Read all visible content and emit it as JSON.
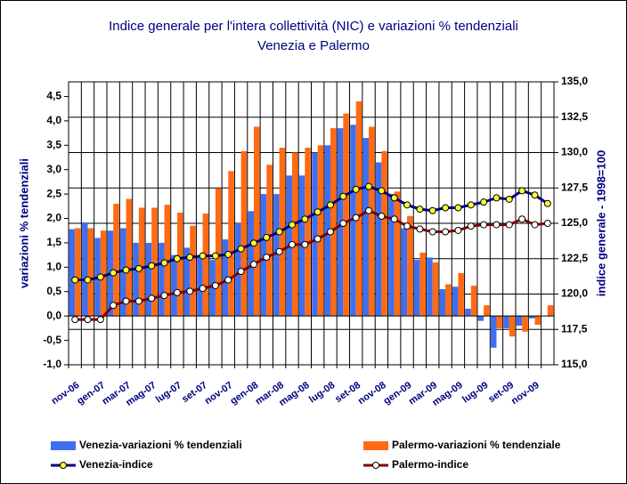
{
  "chart_data": {
    "type": "bar",
    "title": "Indice generale per l'intera collettività (NIC) e variazioni % tendenziali",
    "subtitle": "Venezia e Palermo",
    "y_label": "variazioni % tendenziali",
    "y2_label": "indice generale - 1998=100",
    "categories": [
      "nov-06",
      null,
      "gen-07",
      null,
      "mar-07",
      null,
      "mag-07",
      null,
      "lug-07",
      null,
      "set-07",
      null,
      "nov-07",
      null,
      "gen-08",
      null,
      "mar-08",
      null,
      "mag-08",
      null,
      "lug-08",
      null,
      "set-08",
      null,
      "nov-08",
      null,
      "gen-09",
      null,
      "mar-09",
      null,
      "mag-09",
      null,
      "lug-09",
      null,
      "set-09",
      null,
      "nov-09",
      null
    ],
    "ylim": [
      -1,
      4.8
    ],
    "yticks": [
      {
        "value": 4.5,
        "label": "4,5"
      },
      {
        "value": 4.0,
        "label": "4,0"
      },
      {
        "value": 3.5,
        "label": "3,5"
      },
      {
        "value": 3.0,
        "label": "3,0"
      },
      {
        "value": 2.5,
        "label": "2,5"
      },
      {
        "value": 2.0,
        "label": "2,0"
      },
      {
        "value": 1.5,
        "label": "1,5"
      },
      {
        "value": 1.0,
        "label": "1,0"
      },
      {
        "value": 0.5,
        "label": "0,5"
      },
      {
        "value": 0,
        "label": "0,0"
      },
      {
        "value": -0.5,
        "label": "-0,5"
      },
      {
        "value": -1.0,
        "label": "-1,0"
      }
    ],
    "y2lim": [
      115,
      135
    ],
    "y2ticks": [
      {
        "value": 135,
        "label": "135,0"
      },
      {
        "value": 132.5,
        "label": "132,5"
      },
      {
        "value": 130,
        "label": "130,0"
      },
      {
        "value": 127.5,
        "label": "127,5"
      },
      {
        "value": 125,
        "label": "125,0"
      },
      {
        "value": 122.5,
        "label": "122,5"
      },
      {
        "value": 120,
        "label": "120,0"
      },
      {
        "value": 117.5,
        "label": "117,5"
      },
      {
        "value": 115,
        "label": "115,0"
      }
    ],
    "grid": true,
    "series": [
      {
        "name": "Venezia-variazioni % tendenziali",
        "type": "bar",
        "color": "#3f6fef",
        "values": [
          1.78,
          1.92,
          1.6,
          1.75,
          1.8,
          1.5,
          1.5,
          1.5,
          1.25,
          1.4,
          1.2,
          1.15,
          1.57,
          1.9,
          2.15,
          2.5,
          2.5,
          2.88,
          2.88,
          3.35,
          3.5,
          3.85,
          3.92,
          3.65,
          3.15,
          2.5,
          1.8,
          1.15,
          1.2,
          0.55,
          0.6,
          0.15,
          -0.1,
          -0.65,
          -0.25,
          -0.2,
          -0.05,
          0
        ]
      },
      {
        "name": "Palermo-variazioni % tendenziale",
        "type": "bar",
        "color": "#ff6a13",
        "values": [
          1.8,
          1.8,
          1.75,
          2.3,
          2.4,
          2.22,
          2.22,
          2.28,
          2.12,
          1.85,
          2.1,
          2.62,
          2.97,
          3.38,
          3.88,
          3.1,
          3.45,
          3.35,
          3.45,
          3.5,
          3.85,
          4.15,
          4.4,
          3.88,
          3.38,
          2.55,
          2.05,
          1.3,
          1.1,
          0.65,
          0.88,
          0.62,
          0.22,
          -0.25,
          -0.42,
          -0.32,
          -0.18,
          0.22
        ]
      },
      {
        "name": "Venezia-indice",
        "type": "line",
        "axis": "y2",
        "color": "#000080",
        "marker_color": "#ffff33",
        "values": [
          121.0,
          121.0,
          121.2,
          121.5,
          121.7,
          121.8,
          122.0,
          122.2,
          122.5,
          122.6,
          122.7,
          122.7,
          122.8,
          123.2,
          123.6,
          124.0,
          124.4,
          124.9,
          125.3,
          125.8,
          126.3,
          126.9,
          127.4,
          127.6,
          127.3,
          126.8,
          126.3,
          126.0,
          125.9,
          126.1,
          126.1,
          126.3,
          126.5,
          126.8,
          126.7,
          127.3,
          127.0,
          126.4
        ]
      },
      {
        "name": "Palermo-indice",
        "type": "line",
        "axis": "y2",
        "color": "#800000",
        "marker_color": "#ffffff",
        "values": [
          118.2,
          118.2,
          118.2,
          119.2,
          119.5,
          119.5,
          119.7,
          119.9,
          120.1,
          120.2,
          120.4,
          120.6,
          121.0,
          121.6,
          122.1,
          122.6,
          123.0,
          123.5,
          123.5,
          123.9,
          124.4,
          125.0,
          125.4,
          125.9,
          125.5,
          125.3,
          124.8,
          124.6,
          124.4,
          124.4,
          124.5,
          124.8,
          124.9,
          124.9,
          124.9,
          125.3,
          124.9,
          125.0
        ]
      }
    ]
  }
}
